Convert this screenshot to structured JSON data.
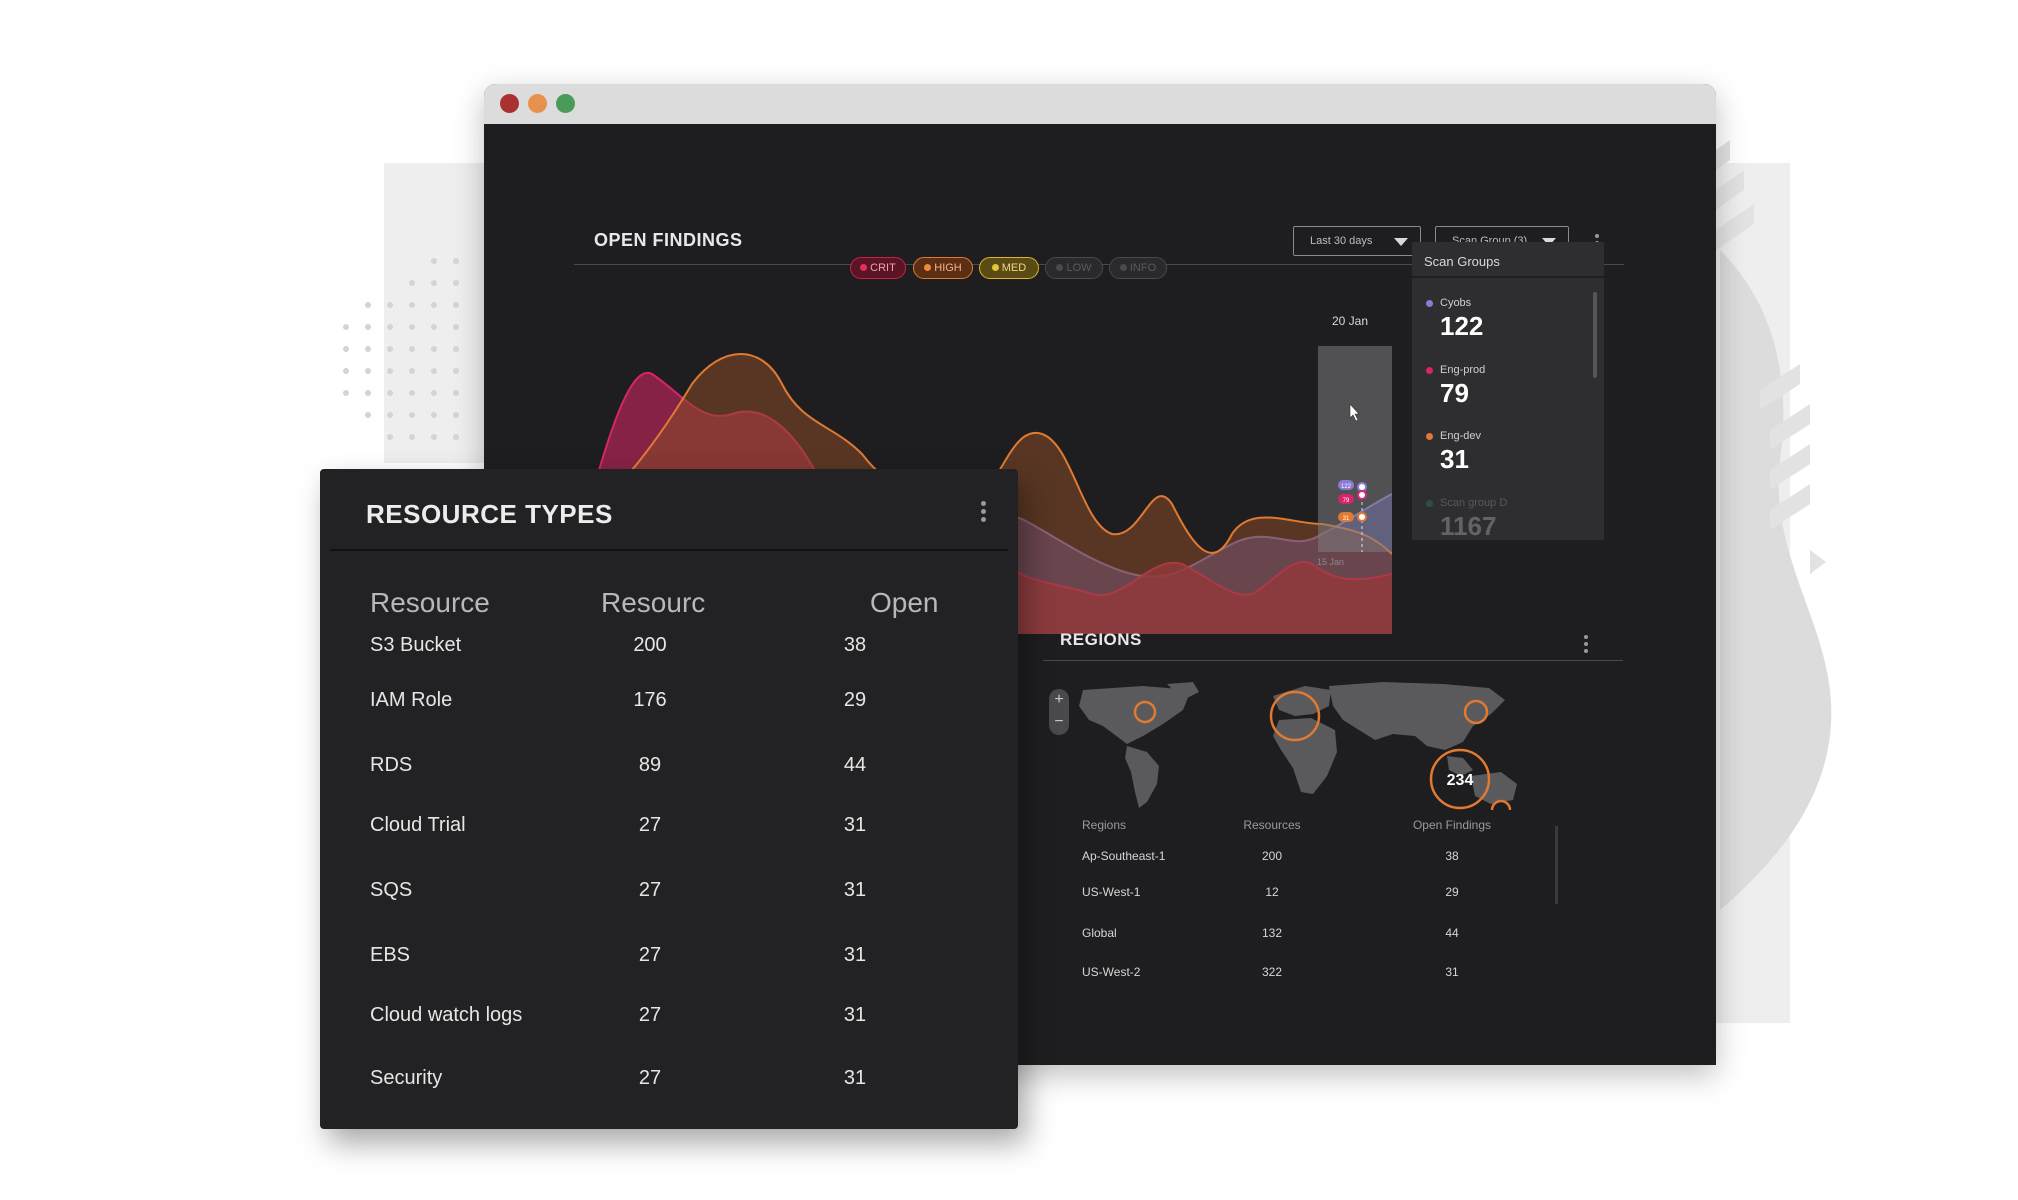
{
  "colors": {
    "crit": "#c4234f",
    "high": "#e07a32",
    "med": "#d9b531",
    "low": "#7a7a7c",
    "info": "#7a7a7c",
    "scan_cyobs": "#8a7bd8",
    "scan_engprod": "#d6256b",
    "scan_engdev": "#e07a32",
    "scan_d": "#2bb39a",
    "region_marker": "#e07a32"
  },
  "open_findings": {
    "title": "OPEN FINDINGS",
    "date_filter": "Last 30 days",
    "group_filter": "Scan Group (3)",
    "severities": [
      {
        "label": "CRIT",
        "active": true
      },
      {
        "label": "HIGH",
        "active": true
      },
      {
        "label": "MED",
        "active": true
      },
      {
        "label": "LOW",
        "active": false
      },
      {
        "label": "INFO",
        "active": false
      }
    ],
    "tooltip_date": "20 Jan",
    "axis_tick": "15 Jan",
    "tooltip_badges": [
      "122",
      "79",
      "31"
    ]
  },
  "scan_groups": {
    "title": "Scan Groups",
    "items": [
      {
        "name": "Cyobs",
        "value": "122"
      },
      {
        "name": "Eng-prod",
        "value": "79"
      },
      {
        "name": "Eng-dev",
        "value": "31"
      },
      {
        "name": "Scan group D",
        "value": "1167"
      }
    ]
  },
  "regions": {
    "title": "REGIONS",
    "zoom_in": "+",
    "zoom_out": "−",
    "map_label": "234",
    "headers": [
      "Regions",
      "Resources",
      "Open Findings"
    ],
    "rows": [
      {
        "region": "Ap-Southeast-1",
        "resources": "200",
        "open": "38"
      },
      {
        "region": "US-West-1",
        "resources": "12",
        "open": "29"
      },
      {
        "region": "Global",
        "resources": "132",
        "open": "44"
      },
      {
        "region": "US-West-2",
        "resources": "322",
        "open": "31"
      }
    ]
  },
  "resource_types": {
    "title": "RESOURCE TYPES",
    "headers": [
      "Resource",
      "Resourc",
      "Open"
    ],
    "rows": [
      {
        "name": "S3 Bucket",
        "resources": "200",
        "open": "38"
      },
      {
        "name": "IAM Role",
        "resources": "176",
        "open": "29"
      },
      {
        "name": "RDS",
        "resources": "89",
        "open": "44"
      },
      {
        "name": "Cloud Trial",
        "resources": "27",
        "open": "31"
      },
      {
        "name": "SQS",
        "resources": "27",
        "open": "31"
      },
      {
        "name": "EBS",
        "resources": "27",
        "open": "31"
      },
      {
        "name": "Cloud watch logs",
        "resources": "27",
        "open": "31"
      },
      {
        "name": "Security",
        "resources": "27",
        "open": "31"
      }
    ]
  }
}
